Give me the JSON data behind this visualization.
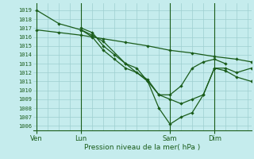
{
  "title": "Pression niveau de la mer( hPa )",
  "bg_color": "#c5eced",
  "grid_color": "#9ecfd0",
  "line_color": "#1a5c1a",
  "ylim": [
    1005.5,
    1019.8
  ],
  "yticks": [
    1006,
    1007,
    1008,
    1009,
    1010,
    1011,
    1012,
    1013,
    1014,
    1015,
    1016,
    1017,
    1018,
    1019
  ],
  "xtick_labels": [
    "Ven",
    "Lun",
    "Sam",
    "Dim"
  ],
  "xtick_positions": [
    0,
    24,
    72,
    96
  ],
  "xlim": [
    -2,
    116
  ],
  "vlines": [
    0,
    24,
    72,
    96
  ],
  "lines": [
    {
      "x": [
        0,
        12,
        24,
        36,
        48,
        60,
        72,
        84,
        96,
        108,
        116
      ],
      "y": [
        1016.8,
        1016.5,
        1016.2,
        1015.8,
        1015.4,
        1015.0,
        1014.5,
        1014.2,
        1013.8,
        1013.5,
        1013.2
      ]
    },
    {
      "x": [
        0,
        12,
        24,
        30,
        36,
        48,
        60,
        66,
        72,
        78,
        84,
        90,
        96,
        102,
        108,
        116
      ],
      "y": [
        1019.0,
        1017.5,
        1016.8,
        1016.2,
        1015.5,
        1013.0,
        1011.0,
        1009.5,
        1009.0,
        1008.5,
        1009.0,
        1009.5,
        1012.5,
        1012.2,
        1011.5,
        1011.0
      ]
    },
    {
      "x": [
        24,
        30,
        36,
        42,
        48,
        54,
        60,
        66,
        72,
        78,
        84,
        90,
        96,
        102,
        108,
        116
      ],
      "y": [
        1017.0,
        1016.5,
        1015.0,
        1014.0,
        1013.0,
        1012.5,
        1011.0,
        1008.0,
        1006.2,
        1007.0,
        1007.5,
        1009.5,
        1012.5,
        1012.5,
        1012.0,
        1012.5
      ]
    },
    {
      "x": [
        24,
        30,
        36,
        42,
        48,
        54,
        60,
        66,
        72,
        78,
        84,
        90,
        96,
        102
      ],
      "y": [
        1016.8,
        1016.0,
        1014.5,
        1013.5,
        1012.5,
        1012.0,
        1011.2,
        1009.5,
        1009.5,
        1010.5,
        1012.5,
        1013.2,
        1013.5,
        1013.0
      ]
    }
  ]
}
